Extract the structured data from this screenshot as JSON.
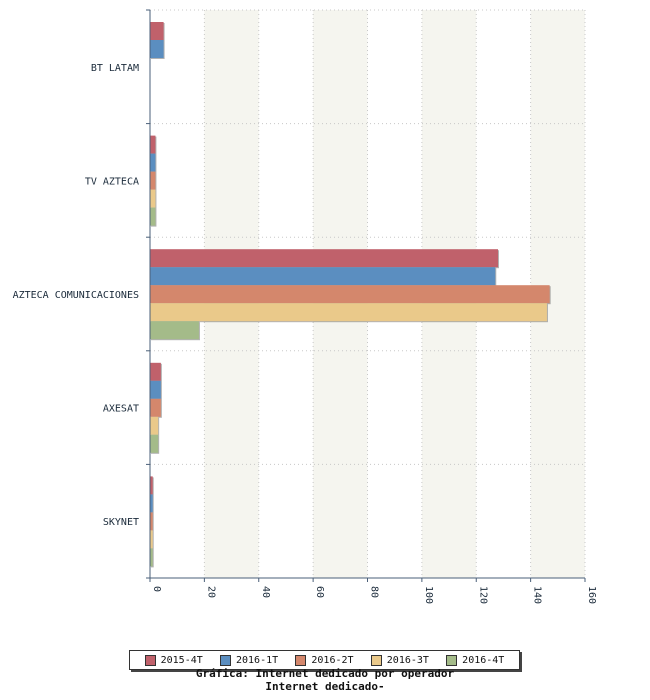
{
  "chart_data": {
    "type": "bar",
    "orientation": "horizontal",
    "title": "Gráfica: Internet dedicado por operador",
    "subtitle": "Internet dedicado-",
    "categories": [
      "BT LATAM",
      "TV AZTECA",
      "AZTECA COMUNICACIONES",
      "AXESAT",
      "SKYNET"
    ],
    "series": [
      {
        "name": "2015-4T",
        "color": "#c0616b",
        "values": [
          5,
          2,
          128,
          4,
          1
        ]
      },
      {
        "name": "2016-1T",
        "color": "#5b8ec0",
        "values": [
          5,
          2,
          127,
          4,
          1
        ]
      },
      {
        "name": "2016-2T",
        "color": "#d4876c",
        "values": [
          null,
          2,
          147,
          4,
          1
        ]
      },
      {
        "name": "2016-3T",
        "color": "#eac98a",
        "values": [
          null,
          2,
          146,
          3,
          1
        ]
      },
      {
        "name": "2016-4T",
        "color": "#a4bb89",
        "values": [
          null,
          2,
          18,
          3,
          1
        ]
      }
    ],
    "xlim": [
      0,
      160
    ],
    "xticks": [
      "0",
      "20",
      "40",
      "60",
      "80",
      "100",
      "120",
      "140",
      "160"
    ],
    "grid": true,
    "legend_position": "bottom"
  }
}
